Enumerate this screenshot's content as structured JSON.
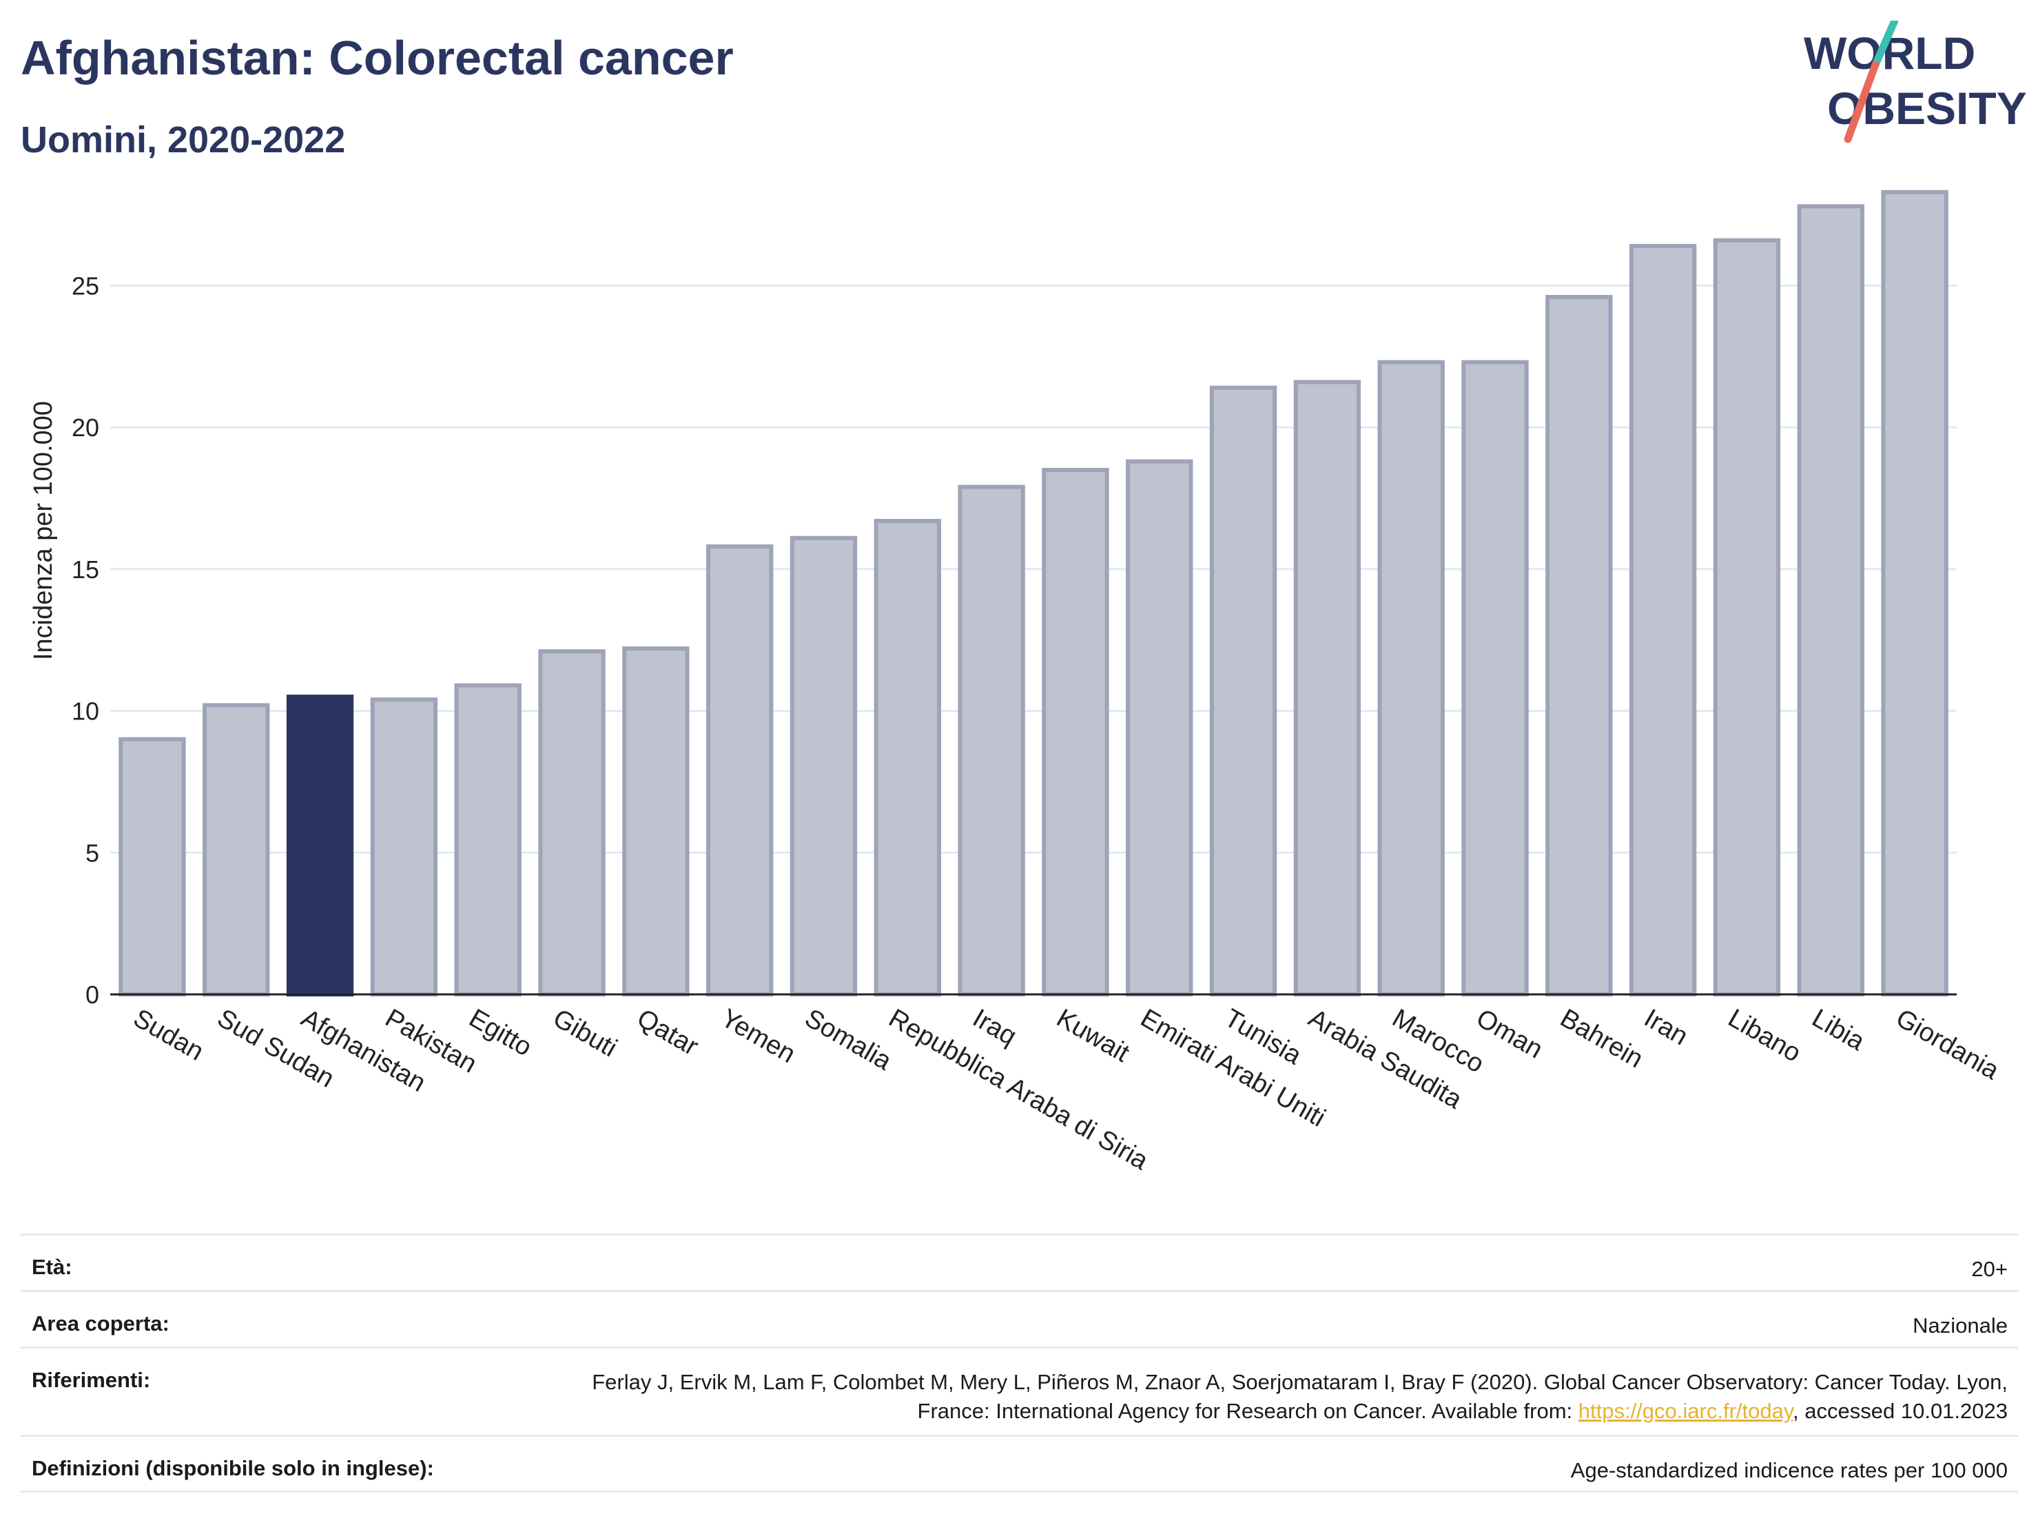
{
  "header": {
    "title": "Afghanistan: Colorectal cancer",
    "subtitle": "Uomini, 2020-2022"
  },
  "logo": {
    "line1": "WORLD",
    "line2": "OBESITY"
  },
  "chart_data": {
    "type": "bar",
    "ylabel": "Incidenza per 100.000",
    "ylim": [
      0,
      29
    ],
    "yticks": [
      0,
      5,
      10,
      15,
      20,
      25
    ],
    "grid": true,
    "highlight": "Afghanistan",
    "categories": [
      "Sudan",
      "Sud Sudan",
      "Afghanistan",
      "Pakistan",
      "Egitto",
      "Gibuti",
      "Qatar",
      "Yemen",
      "Somalia",
      "Repubblica Araba di Siria",
      "Iraq",
      "Kuwait",
      "Emirati Arabi Uniti",
      "Tunisia",
      "Arabia Saudita",
      "Marocco",
      "Oman",
      "Bahrein",
      "Iran",
      "Libano",
      "Libia",
      "Giordania"
    ],
    "values": [
      9.0,
      10.2,
      10.5,
      10.4,
      10.9,
      12.1,
      12.2,
      15.8,
      16.1,
      16.7,
      17.9,
      18.5,
      18.8,
      21.4,
      21.6,
      22.3,
      22.3,
      24.6,
      26.4,
      26.6,
      27.8,
      28.3
    ]
  },
  "colors": {
    "highlight_bar": "#2b3660",
    "other_bar": "#bfc2cf",
    "other_bar_border": "#9ea3b8",
    "title": "#2b3660",
    "link": "#e9b22e"
  },
  "meta": {
    "age_label": "Età:",
    "age_value": "20+",
    "area_label": "Area coperta:",
    "area_value": "Nazionale",
    "refs_label": "Riferimenti:",
    "refs_text_1": "Ferlay J, Ervik M, Lam F, Colombet M, Mery L, Piñeros M, Znaor A, Soerjomataram I, Bray F (2020). Global Cancer Observatory: Cancer Today. Lyon, France: International Agency for Research on Cancer. Available from: ",
    "refs_link": "https://gco.iarc.fr/today",
    "refs_text_2": ", accessed 10.01.2023",
    "defs_label": "Definizioni (disponibile solo in inglese):",
    "defs_value": "Age-standardized indicence rates per 100 000"
  }
}
